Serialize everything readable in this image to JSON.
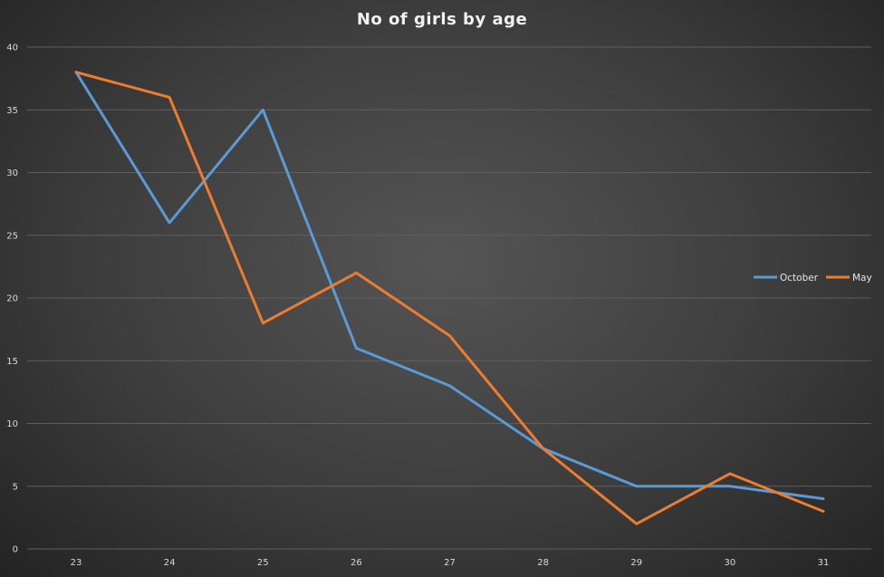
{
  "chart_data": {
    "type": "line",
    "title": "No of girls  by age",
    "x": [
      "23",
      "24",
      "25",
      "26",
      "27",
      "28",
      "29",
      "30",
      "31"
    ],
    "series": [
      {
        "name": "October",
        "color": "#5b9bd5",
        "values": [
          38,
          26,
          35,
          16,
          13,
          8,
          5,
          5,
          4
        ]
      },
      {
        "name": "May",
        "color": "#ed7d31",
        "values": [
          38,
          36,
          18,
          22,
          17,
          8,
          2,
          6,
          3
        ]
      }
    ],
    "ylim": [
      0,
      40
    ],
    "yticks": [
      0,
      5,
      10,
      15,
      20,
      25,
      30,
      35,
      40
    ],
    "grid": true,
    "legend": "right",
    "gridColor": "#5f5f5f"
  }
}
